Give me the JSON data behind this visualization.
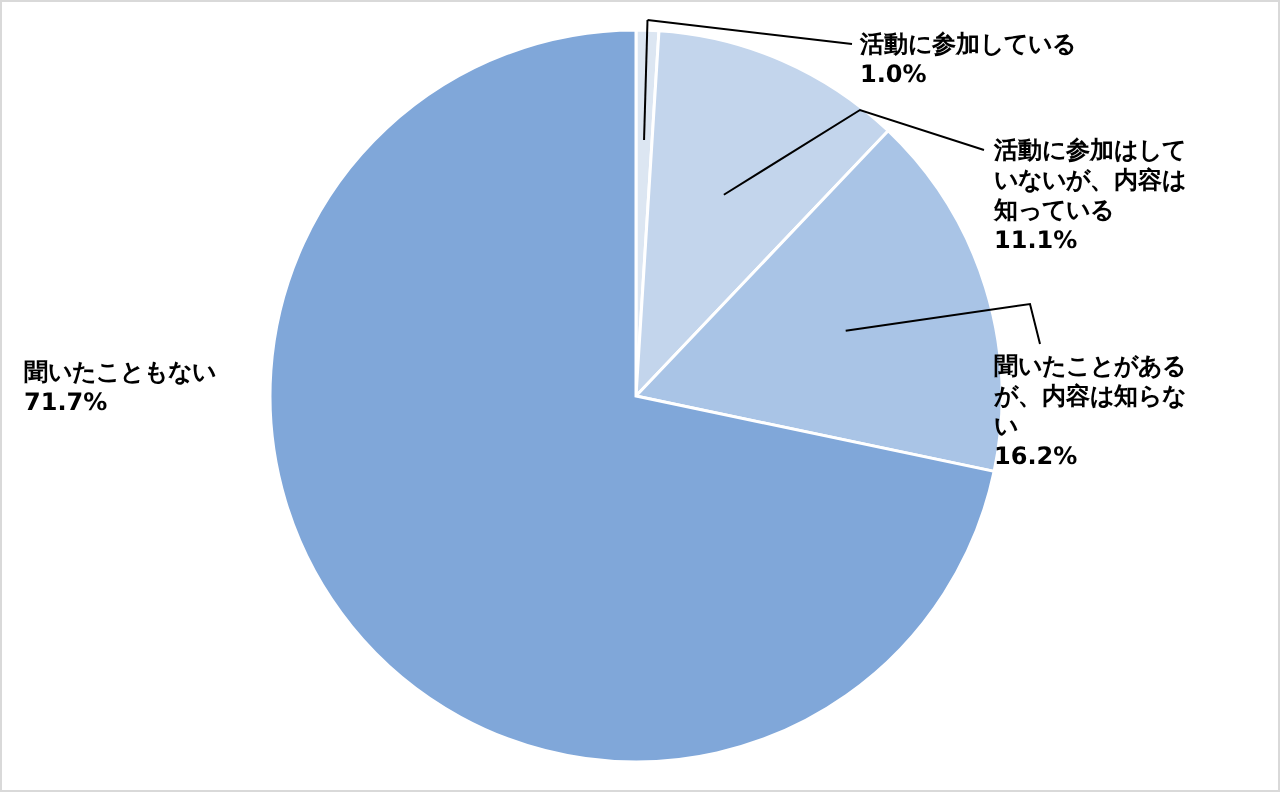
{
  "chart_data": {
    "type": "pie",
    "categories": [
      "活動に参加している",
      "活動に参加はしていないが、内容は知っている",
      "聞いたことがあるが、内容は知らない",
      "聞いたこともない"
    ],
    "values": [
      1.0,
      11.1,
      16.2,
      71.7
    ],
    "colors": [
      "#dce6f2",
      "#c3d5ec",
      "#a9c4e6",
      "#80a7d9"
    ],
    "value_labels": [
      "1.0%",
      "11.1%",
      "16.2%",
      "71.7%"
    ]
  }
}
